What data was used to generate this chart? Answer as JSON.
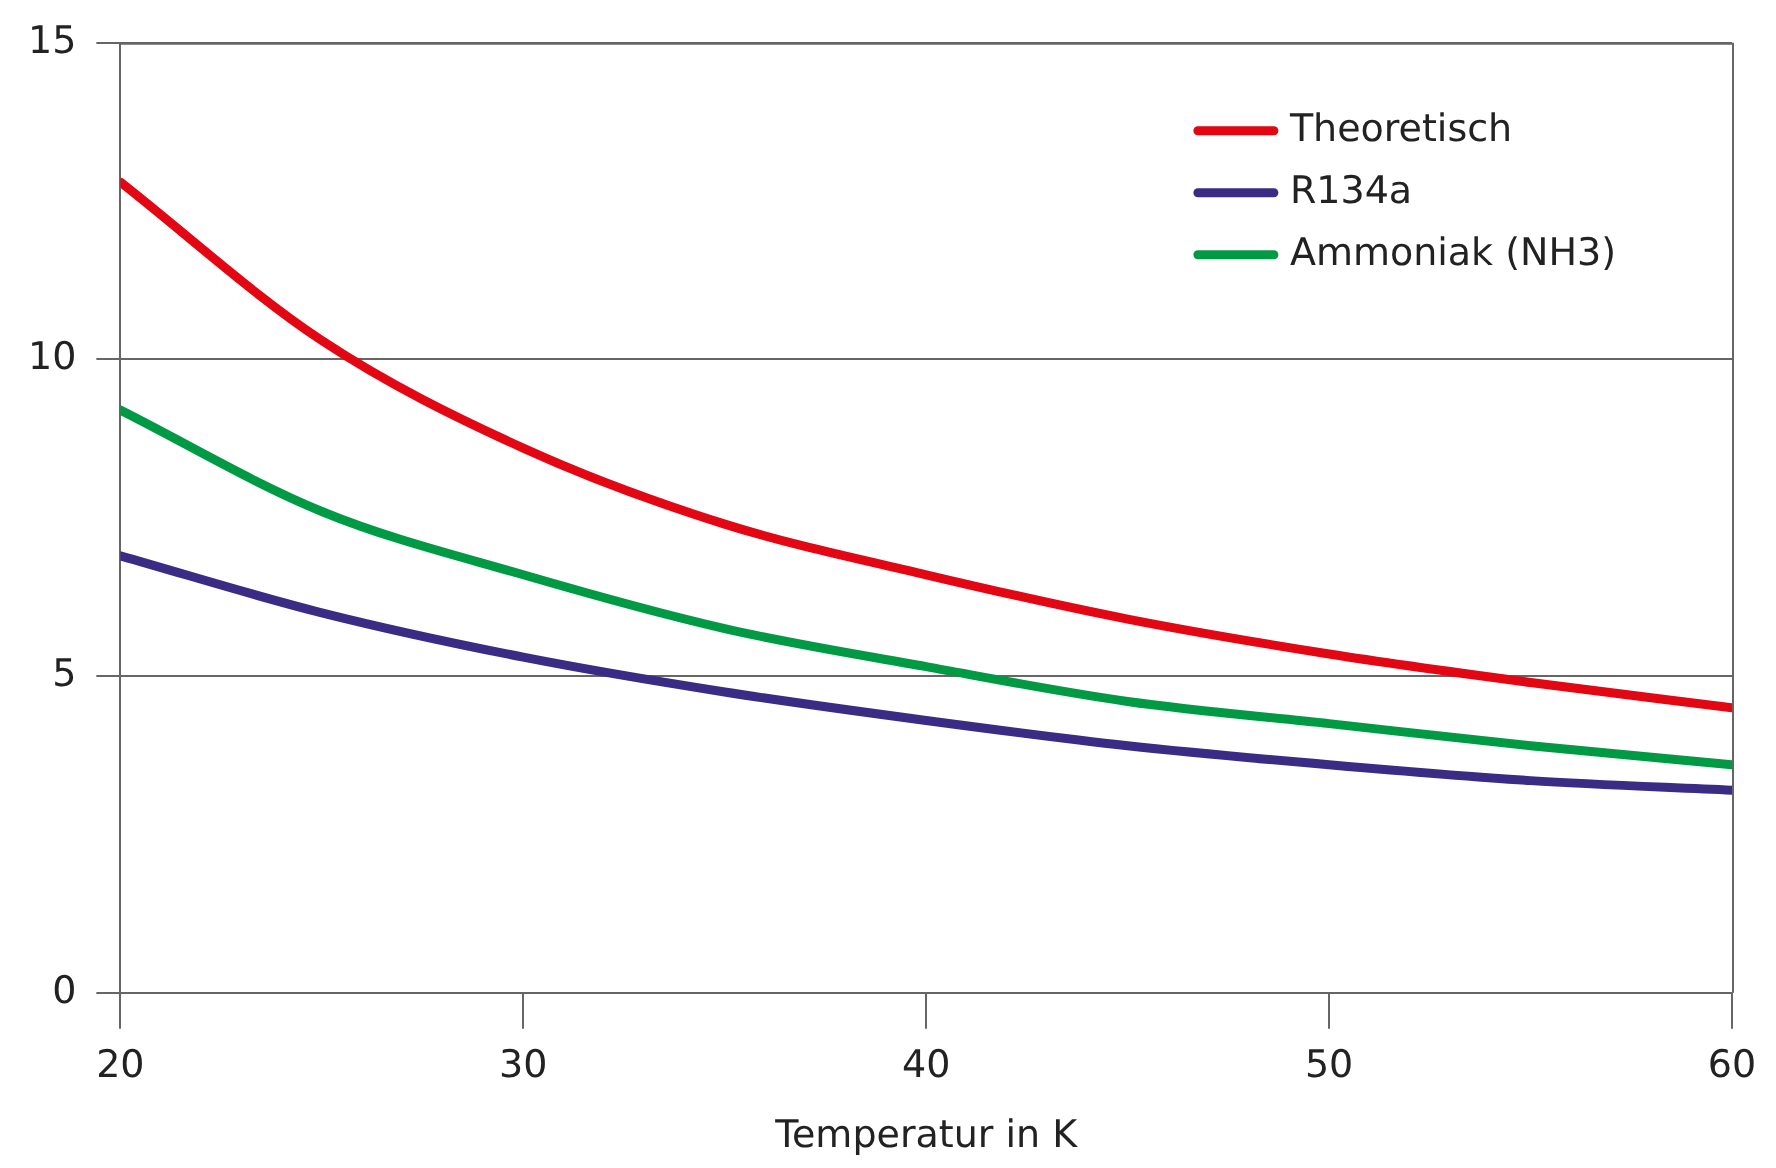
{
  "chart_data": {
    "type": "line",
    "xlabel": "Temperatur in K",
    "x": [
      20,
      25,
      30,
      35,
      40,
      45,
      50,
      55,
      60
    ],
    "series": [
      {
        "name": "Theoretisch",
        "color": "#e30613",
        "values": [
          12.8,
          10.3,
          8.6,
          7.4,
          6.6,
          5.9,
          5.35,
          4.9,
          4.5
        ]
      },
      {
        "name": "R134a",
        "color": "#3a2b85",
        "values": [
          6.9,
          6.0,
          5.3,
          4.75,
          4.3,
          3.9,
          3.6,
          3.35,
          3.2
        ]
      },
      {
        "name": "Ammoniak (NH3)",
        "color": "#009a44",
        "values": [
          9.2,
          7.6,
          6.6,
          5.75,
          5.15,
          4.6,
          4.25,
          3.9,
          3.6
        ]
      }
    ],
    "xlim": [
      20,
      60
    ],
    "xticks": [
      20,
      30,
      40,
      50,
      60
    ],
    "ylim": [
      0,
      15
    ],
    "yticks": [
      0,
      5,
      10,
      15
    ],
    "grid": "y",
    "legend": "top right",
    "marker": "none",
    "line_style": "solid"
  }
}
